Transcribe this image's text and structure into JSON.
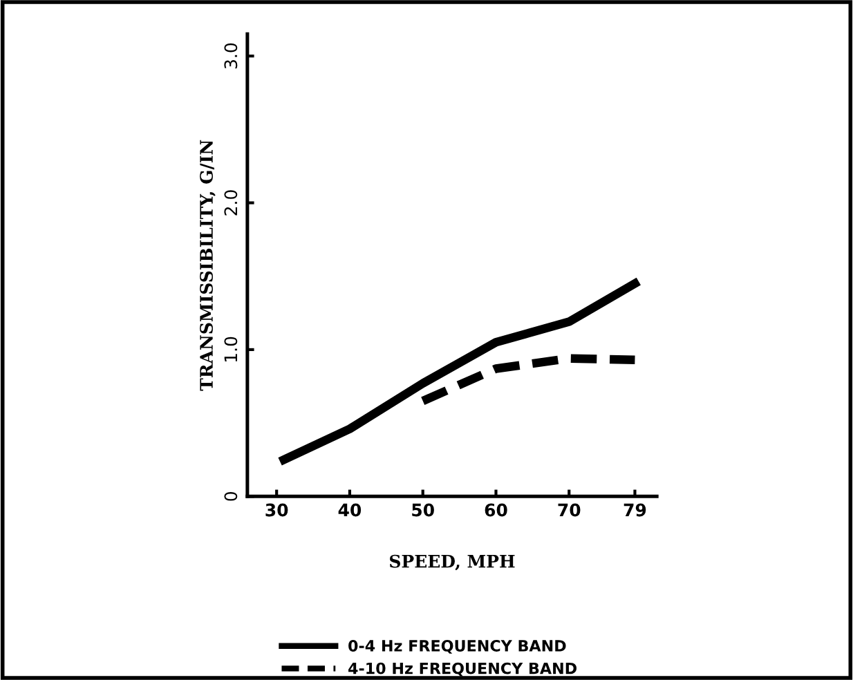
{
  "chart_data": {
    "type": "line",
    "xlabel": "SPEED, MPH",
    "ylabel": "TRANSMISSIBILITY, G/IN",
    "xlim": [
      26,
      82
    ],
    "xticks": [
      30,
      40,
      50,
      60,
      70,
      79
    ],
    "ylim": [
      0,
      3.15
    ],
    "yticks": [
      {
        "value": 0,
        "label": "0"
      },
      {
        "value": 1,
        "label": "1.0"
      },
      {
        "value": 2,
        "label": "2.0"
      },
      {
        "value": 3,
        "label": "3.0"
      }
    ],
    "grid": false,
    "legend": "bottom",
    "marker": "none",
    "series": [
      {
        "name": "0-4 Hz FREQUENCY BAND",
        "color": "#000000",
        "line_style": "solid",
        "x": [
          31,
          40,
          50,
          60,
          70,
          79
        ],
        "values": [
          0.25,
          0.46,
          0.77,
          1.05,
          1.19,
          1.45
        ]
      },
      {
        "name": "4-10 Hz FREQUENCY BAND",
        "color": "#000000",
        "line_style": "dashed",
        "x": [
          50,
          60,
          70,
          79
        ],
        "values": [
          0.65,
          0.87,
          0.94,
          0.93
        ]
      }
    ]
  }
}
